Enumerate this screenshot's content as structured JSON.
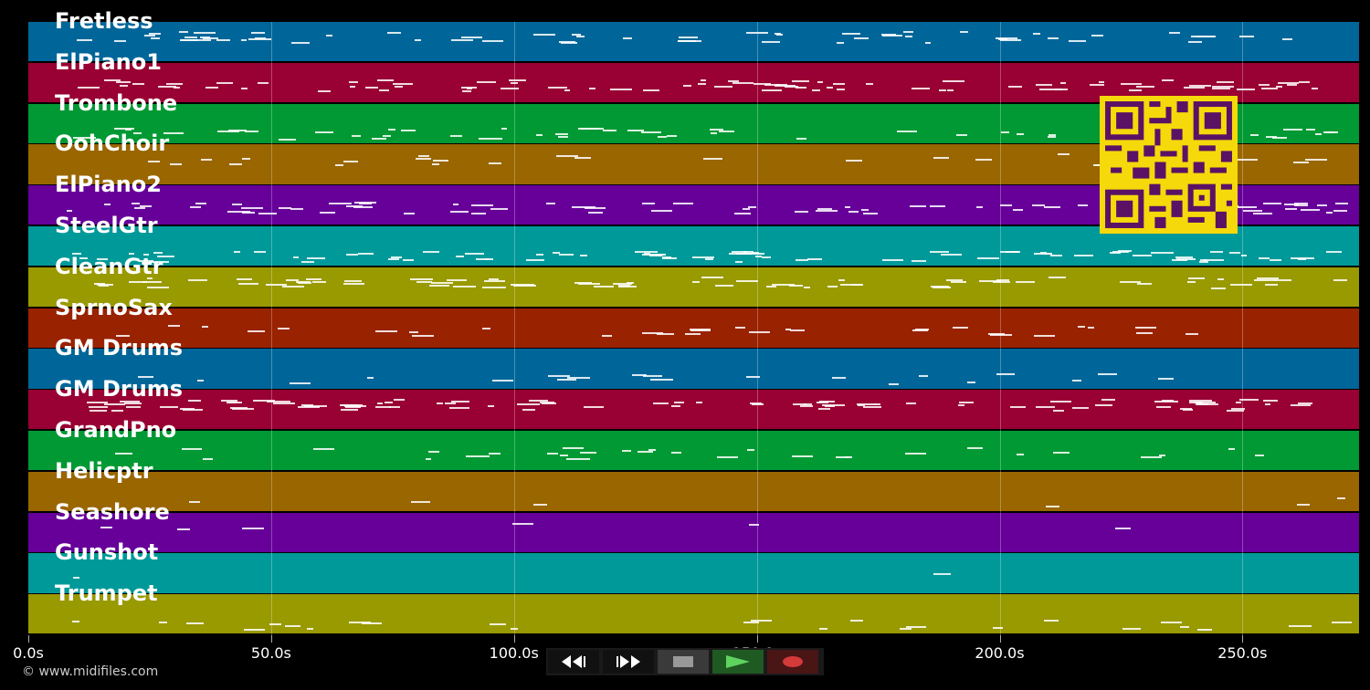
{
  "colors": {
    "track_palette": [
      "#006699",
      "#990033",
      "#009933",
      "#996600",
      "#660099",
      "#009999",
      "#999900",
      "#992200"
    ],
    "note": "#ffffff",
    "qr_fg": "#5a1265",
    "qr_bg": "#f5d90a"
  },
  "tracks": [
    {
      "name": "Fretless",
      "color": "#006699"
    },
    {
      "name": "ElPiano1",
      "color": "#990033"
    },
    {
      "name": "Trombone",
      "color": "#009933"
    },
    {
      "name": "OohChoir",
      "color": "#996600"
    },
    {
      "name": "ElPiano2",
      "color": "#660099"
    },
    {
      "name": "SteelGtr",
      "color": "#009999"
    },
    {
      "name": "CleanGtr",
      "color": "#999900"
    },
    {
      "name": "SprnoSax",
      "color": "#992200"
    },
    {
      "name": "GM Drums",
      "color": "#006699"
    },
    {
      "name": "GM Drums",
      "color": "#990033"
    },
    {
      "name": "GrandPno",
      "color": "#009933"
    },
    {
      "name": "Helicptr",
      "color": "#996600"
    },
    {
      "name": "Seashore",
      "color": "#660099"
    },
    {
      "name": "Gunshot",
      "color": "#009999"
    },
    {
      "name": "Trumpet",
      "color": "#999900"
    }
  ],
  "timeline": {
    "ticks": [
      {
        "seconds": 0,
        "label": "0.0s"
      },
      {
        "seconds": 50,
        "label": "50.0s"
      },
      {
        "seconds": 100,
        "label": "100.0s"
      },
      {
        "seconds": 150,
        "label": "150.0s"
      },
      {
        "seconds": 200,
        "label": "200.0s"
      },
      {
        "seconds": 250,
        "label": "250.0s"
      }
    ],
    "end_seconds": 274
  },
  "transport": {
    "rewind": "rewind-icon",
    "forward": "fast-forward-icon",
    "stop": "stop-icon",
    "play": "play-icon",
    "record": "record-icon"
  },
  "footer": {
    "copyright": "© www.midifiles.com"
  }
}
